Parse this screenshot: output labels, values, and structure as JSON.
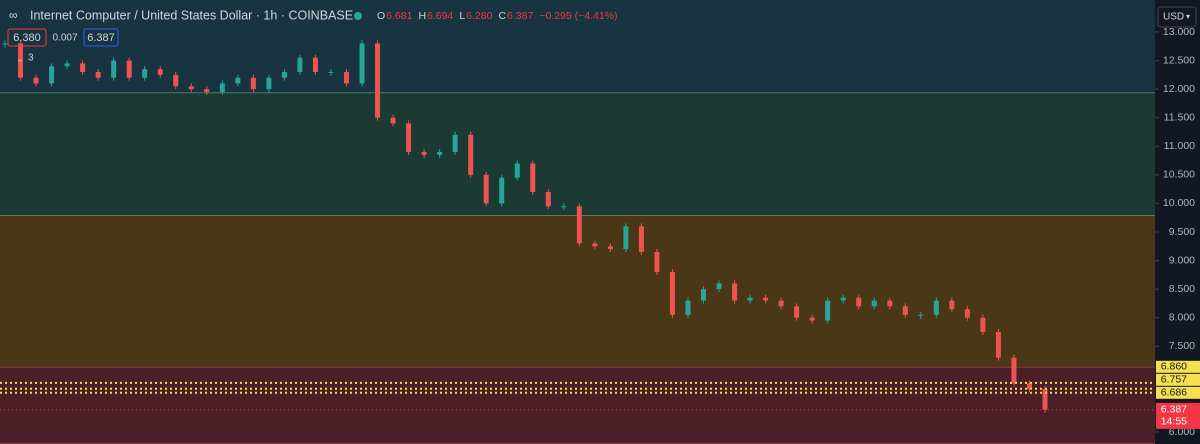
{
  "chart_data": {
    "type": "candlestick",
    "title": "Internet Computer / United States Dollar · 1h · COINBASE",
    "ohlc": [
      {
        "key": "O",
        "value": "6.681"
      },
      {
        "key": "H",
        "value": "6.694"
      },
      {
        "key": "L",
        "value": "6.280"
      },
      {
        "key": "C",
        "value": "6.387"
      }
    ],
    "change": "−0.295 (−4.41%)",
    "bid": "6.380",
    "spread": "0.007",
    "ask": "6.387",
    "indicators_count": "3",
    "currency": "USD",
    "ylim": [
      5.79,
      13.56
    ],
    "yticks": [
      {
        "value": 13,
        "label": "13.000"
      },
      {
        "value": 12.5,
        "label": "12.500"
      },
      {
        "value": 12,
        "label": "12.000"
      },
      {
        "value": 11.5,
        "label": "11.500"
      },
      {
        "value": 11,
        "label": "11.000"
      },
      {
        "value": 10.5,
        "label": "10.500"
      },
      {
        "value": 10,
        "label": "10.000"
      },
      {
        "value": 9.5,
        "label": "9.500"
      },
      {
        "value": 9,
        "label": "9.000"
      },
      {
        "value": 8.5,
        "label": "8.500"
      },
      {
        "value": 8,
        "label": "8.000"
      },
      {
        "value": 7.5,
        "label": "7.500"
      },
      {
        "value": 6,
        "label": "6.000"
      }
    ],
    "zones": [
      {
        "top": 13.56,
        "bottom": 11.93,
        "color": "#173440",
        "edge": "#a5d6a7"
      },
      {
        "top": 11.93,
        "bottom": 9.78,
        "color": "#1b3a34",
        "edge": "#e6d36a"
      },
      {
        "top": 9.78,
        "bottom": 7.13,
        "color": "#4a3718",
        "edge": "#e05a63"
      },
      {
        "top": 7.13,
        "bottom": 5.79,
        "color": "#4a1f27",
        "edge": "#e05a63"
      }
    ],
    "levels": [
      {
        "value": 6.86,
        "label": "6.860",
        "color": "#f5e050"
      },
      {
        "value": 6.757,
        "label": "6.757",
        "color": "#f5e050"
      },
      {
        "value": 6.686,
        "label": "6.686",
        "color": "#f5e050"
      }
    ],
    "last_price": {
      "value": 6.387,
      "label": "6.387",
      "countdown": "14:55",
      "color": "#f23645"
    },
    "up_color": "#26a69a",
    "down_color": "#ef5350",
    "values": [
      12.8,
      12.2,
      12.1,
      12.4,
      12.45,
      12.3,
      12.2,
      12.5,
      12.2,
      12.35,
      12.25,
      12.05,
      12.0,
      11.95,
      12.1,
      12.2,
      12.0,
      12.2,
      12.3,
      12.55,
      12.3,
      12.3,
      12.1,
      12.8,
      11.5,
      11.4,
      10.9,
      10.85,
      10.9,
      11.2,
      10.5,
      10.0,
      10.45,
      10.7,
      10.2,
      9.95,
      9.95,
      9.3,
      9.25,
      9.2,
      9.6,
      9.15,
      8.8,
      8.05,
      8.3,
      8.5,
      8.6,
      8.3,
      8.35,
      8.3,
      8.2,
      8.0,
      7.95,
      8.3,
      8.35,
      8.2,
      8.3,
      8.2,
      8.05,
      8.05,
      8.3,
      8.15,
      8.0,
      7.75,
      7.3,
      6.85,
      6.75,
      6.39
    ]
  }
}
